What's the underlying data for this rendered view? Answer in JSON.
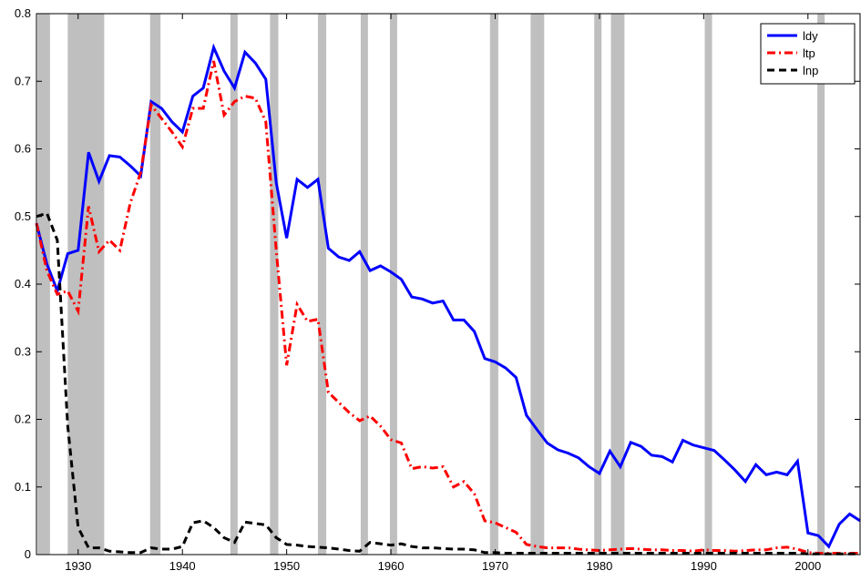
{
  "chart_data": {
    "type": "line",
    "x": [
      1926,
      1927,
      1928,
      1929,
      1930,
      1931,
      1932,
      1933,
      1934,
      1935,
      1936,
      1937,
      1938,
      1939,
      1940,
      1941,
      1942,
      1943,
      1944,
      1945,
      1946,
      1947,
      1948,
      1949,
      1950,
      1951,
      1952,
      1953,
      1954,
      1955,
      1956,
      1957,
      1958,
      1959,
      1960,
      1961,
      1962,
      1963,
      1964,
      1965,
      1966,
      1967,
      1968,
      1969,
      1970,
      1971,
      1972,
      1973,
      1974,
      1975,
      1976,
      1977,
      1978,
      1979,
      1980,
      1981,
      1982,
      1983,
      1984,
      1985,
      1986,
      1987,
      1988,
      1989,
      1990,
      1991,
      1992,
      1993,
      1994,
      1995,
      1996,
      1997,
      1998,
      1999,
      2000,
      2001,
      2002,
      2003,
      2004,
      2005
    ],
    "series": [
      {
        "name": "ldy",
        "color": "#0000ff",
        "line_style": "solid",
        "values": [
          0.49,
          0.43,
          0.39,
          0.445,
          0.45,
          0.595,
          0.552,
          0.59,
          0.588,
          0.575,
          0.56,
          0.67,
          0.66,
          0.64,
          0.625,
          0.678,
          0.69,
          0.75,
          0.715,
          0.69,
          0.743,
          0.727,
          0.703,
          0.55,
          0.468,
          0.555,
          0.543,
          0.555,
          0.453,
          0.44,
          0.435,
          0.448,
          0.42,
          0.427,
          0.418,
          0.407,
          0.381,
          0.378,
          0.372,
          0.375,
          0.347,
          0.347,
          0.33,
          0.29,
          0.285,
          0.276,
          0.262,
          0.206,
          0.185,
          0.165,
          0.155,
          0.15,
          0.143,
          0.13,
          0.12,
          0.153,
          0.13,
          0.166,
          0.16,
          0.147,
          0.145,
          0.137,
          0.169,
          0.162,
          0.158,
          0.154,
          0.14,
          0.125,
          0.108,
          0.133,
          0.118,
          0.122,
          0.118,
          0.138,
          0.032,
          0.028,
          0.012,
          0.045,
          0.06,
          0.05
        ]
      },
      {
        "name": "ltp",
        "color": "#ff0000",
        "line_style": "dashdot",
        "values": [
          0.49,
          0.42,
          0.385,
          0.39,
          0.36,
          0.515,
          0.448,
          0.465,
          0.45,
          0.52,
          0.565,
          0.665,
          0.645,
          0.625,
          0.603,
          0.66,
          0.66,
          0.73,
          0.65,
          0.67,
          0.678,
          0.675,
          0.64,
          0.45,
          0.28,
          0.37,
          0.345,
          0.348,
          0.24,
          0.225,
          0.21,
          0.198,
          0.205,
          0.19,
          0.17,
          0.165,
          0.127,
          0.13,
          0.128,
          0.13,
          0.1,
          0.108,
          0.09,
          0.05,
          0.047,
          0.04,
          0.033,
          0.015,
          0.012,
          0.01,
          0.01,
          0.01,
          0.008,
          0.007,
          0.006,
          0.007,
          0.008,
          0.009,
          0.008,
          0.007,
          0.007,
          0.006,
          0.006,
          0.005,
          0.007,
          0.006,
          0.006,
          0.005,
          0.006,
          0.007,
          0.007,
          0.01,
          0.011,
          0.008,
          0.003,
          0.002,
          0.002,
          0.002,
          0.002,
          0.002
        ]
      },
      {
        "name": "lnp",
        "color": "#000000",
        "line_style": "dashed",
        "values": [
          0.5,
          0.505,
          0.465,
          0.19,
          0.04,
          0.01,
          0.01,
          0.005,
          0.004,
          0.003,
          0.003,
          0.01,
          0.008,
          0.008,
          0.012,
          0.047,
          0.05,
          0.04,
          0.025,
          0.018,
          0.048,
          0.046,
          0.044,
          0.025,
          0.015,
          0.014,
          0.012,
          0.011,
          0.01,
          0.008,
          0.006,
          0.005,
          0.018,
          0.016,
          0.014,
          0.016,
          0.012,
          0.01,
          0.01,
          0.009,
          0.008,
          0.008,
          0.007,
          0.003,
          0.003,
          0.002,
          0.002,
          0.002,
          0.002,
          0.002,
          0.002,
          0.002,
          0.002,
          0.002,
          0.002,
          0.002,
          0.002,
          0.002,
          0.002,
          0.002,
          0.002,
          0.002,
          0.002,
          0.002,
          0.002,
          0.002,
          0.002,
          0.002,
          0.002,
          0.002,
          0.002,
          0.002,
          0.002,
          0.002,
          0.001,
          0.001,
          0.001,
          0.001,
          0.001,
          0.001
        ]
      }
    ],
    "shaded_periods": [
      [
        1926.1,
        1927.3
      ],
      [
        1929.0,
        1932.5
      ],
      [
        1936.9,
        1937.9
      ],
      [
        1944.6,
        1945.3
      ],
      [
        1948.4,
        1949.2
      ],
      [
        1953.0,
        1953.8
      ],
      [
        1957.1,
        1957.8
      ],
      [
        1959.9,
        1960.6
      ],
      [
        1969.5,
        1970.3
      ],
      [
        1973.4,
        1974.7
      ],
      [
        1979.5,
        1980.2
      ],
      [
        1981.1,
        1982.4
      ],
      [
        1990.1,
        1990.8
      ],
      [
        2000.9,
        2001.6
      ]
    ],
    "shade_color": "#bfbfbf",
    "xlim": [
      1926,
      2005
    ],
    "xticks": [
      1930,
      1940,
      1950,
      1960,
      1970,
      1980,
      1990,
      2000
    ],
    "ylim": [
      0,
      0.8
    ],
    "yticks": [
      0,
      0.1,
      0.2,
      0.3,
      0.4,
      0.5,
      0.6,
      0.7,
      0.8
    ],
    "grid": false,
    "legend": "northeast"
  }
}
